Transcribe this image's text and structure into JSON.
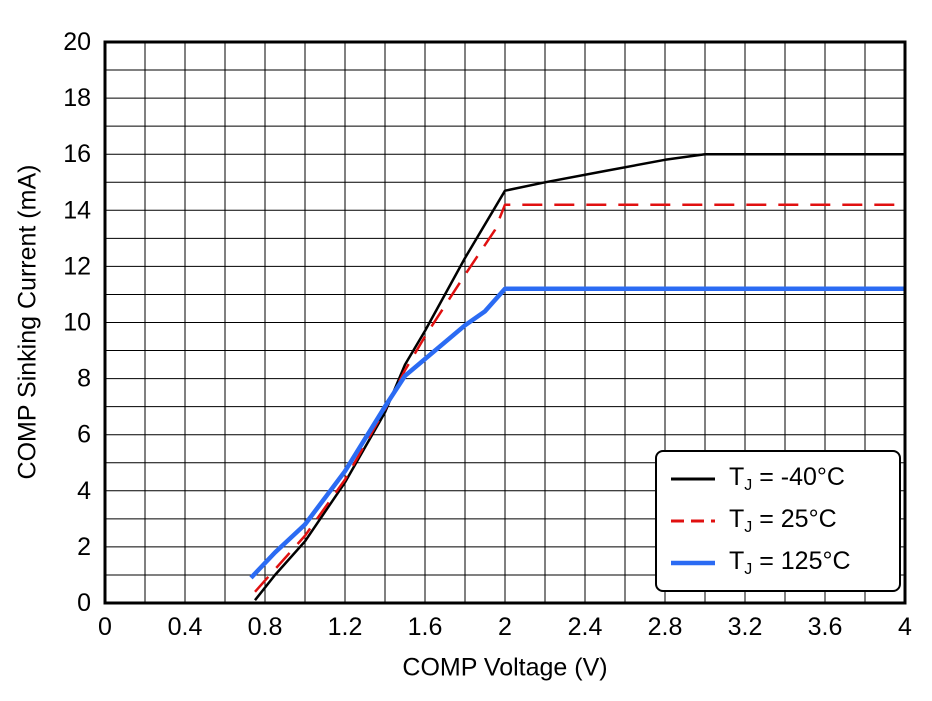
{
  "chart_data": {
    "type": "line",
    "title": "",
    "xlabel": "COMP Voltage (V)",
    "ylabel": "COMP Sinking Current (mA)",
    "xlim": [
      0,
      4
    ],
    "ylim": [
      0,
      20
    ],
    "x_tick_labels": [
      "0",
      "0.4",
      "0.8",
      "1.2",
      "1.6",
      "2",
      "2.4",
      "2.8",
      "3.2",
      "3.6",
      "4"
    ],
    "y_tick_labels": [
      "0",
      "2",
      "4",
      "6",
      "8",
      "10",
      "12",
      "14",
      "16",
      "18",
      "20"
    ],
    "x_minor_step": 0.2,
    "y_minor_step": 1,
    "grid": true,
    "grid_color": "#000000",
    "frame_color": "#000000",
    "legend_position": "lower right",
    "series": [
      {
        "name": "TJ = -40°C",
        "legend": {
          "pre": "T",
          "sub": "J",
          "post": " = -40°C"
        },
        "color": "#000000",
        "width": 2.5,
        "dash": null,
        "points": [
          [
            0.75,
            0.1
          ],
          [
            0.85,
            1.0
          ],
          [
            1.0,
            2.2
          ],
          [
            1.2,
            4.3
          ],
          [
            1.4,
            6.8
          ],
          [
            1.5,
            8.5
          ],
          [
            1.6,
            9.7
          ],
          [
            1.8,
            12.3
          ],
          [
            2.0,
            14.7
          ],
          [
            2.2,
            15.0
          ],
          [
            2.5,
            15.4
          ],
          [
            2.8,
            15.8
          ],
          [
            3.0,
            16.0
          ],
          [
            4.0,
            16.0
          ]
        ]
      },
      {
        "name": "TJ = 25°C",
        "legend": {
          "pre": "T",
          "sub": "J",
          "post": " = 25°C"
        },
        "color": "#e01010",
        "width": 2.5,
        "dash": [
          20,
          12
        ],
        "points": [
          [
            0.75,
            0.4
          ],
          [
            0.85,
            1.2
          ],
          [
            1.0,
            2.4
          ],
          [
            1.2,
            4.4
          ],
          [
            1.4,
            6.9
          ],
          [
            1.5,
            8.3
          ],
          [
            1.6,
            9.5
          ],
          [
            1.8,
            11.7
          ],
          [
            1.95,
            13.3
          ],
          [
            2.0,
            14.2
          ],
          [
            4.0,
            14.2
          ]
        ]
      },
      {
        "name": "TJ = 125°C",
        "legend": {
          "pre": "T",
          "sub": "J",
          "post": " = 125°C"
        },
        "color": "#2b6bf3",
        "width": 4.5,
        "dash": null,
        "points": [
          [
            0.73,
            0.9
          ],
          [
            0.85,
            1.8
          ],
          [
            1.0,
            2.8
          ],
          [
            1.2,
            4.7
          ],
          [
            1.4,
            7.0
          ],
          [
            1.5,
            8.1
          ],
          [
            1.6,
            8.7
          ],
          [
            1.8,
            9.9
          ],
          [
            1.9,
            10.4
          ],
          [
            2.0,
            11.2
          ],
          [
            4.0,
            11.2
          ]
        ]
      }
    ]
  }
}
